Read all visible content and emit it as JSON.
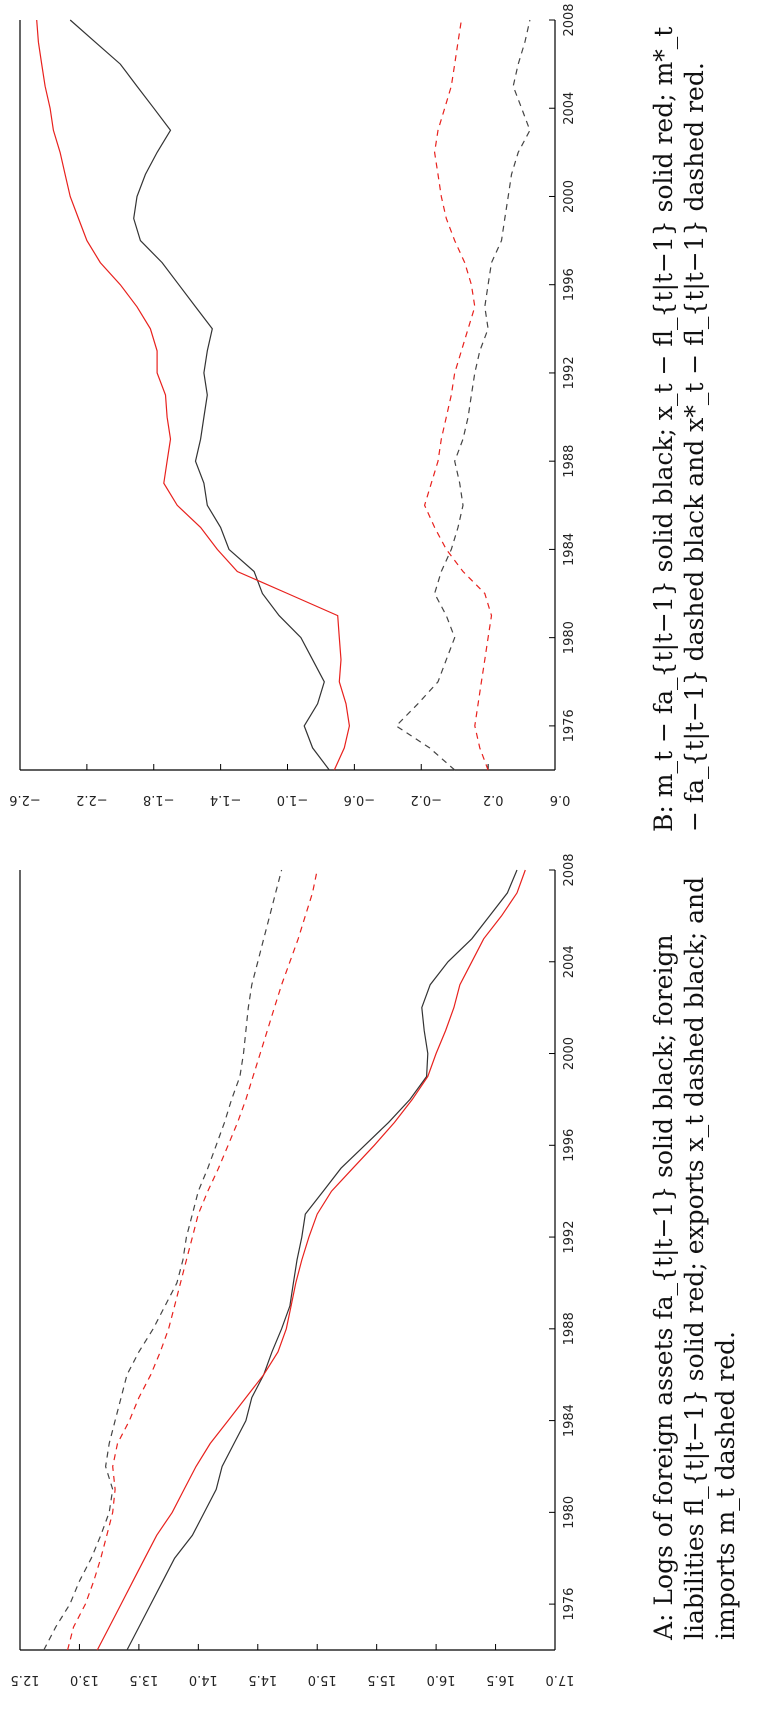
{
  "chart_data": [
    {
      "panel": "A",
      "type": "line",
      "caption": "A: Logs of foreign assets fa_{t|t−1} solid black; foreign liabilities fl_{t|t−1} solid red; exports x_t dashed black; and imports m_t dashed red.",
      "ylim": [
        12.5,
        17.0
      ],
      "yticks": [
        "12.5",
        "13.0",
        "13.5",
        "14.0",
        "14.5",
        "15.0",
        "15.5",
        "16.0",
        "16.5",
        "17.0"
      ],
      "xlim": [
        1974,
        2008
      ],
      "xticks": [
        "1976",
        "1980",
        "1984",
        "1988",
        "1992",
        "1996",
        "2000",
        "2004",
        "2008"
      ],
      "series": [
        {
          "style": "solid",
          "color": "#333333",
          "x": [
            1974,
            1975,
            1976,
            1977,
            1978,
            1979,
            1980,
            1981,
            1982,
            1983,
            1984,
            1985,
            1986,
            1987,
            1988,
            1989,
            1990,
            1991,
            1992,
            1993,
            1994,
            1995,
            1996,
            1997,
            1998,
            1999,
            2000,
            2001,
            2002,
            2003,
            2004,
            2005,
            2006,
            2007,
            2008
          ],
          "y": [
            13.4,
            13.5,
            13.6,
            13.7,
            13.8,
            13.95,
            14.05,
            14.15,
            14.2,
            14.3,
            14.4,
            14.45,
            14.55,
            14.62,
            14.7,
            14.77,
            14.8,
            14.83,
            14.87,
            14.9,
            15.05,
            15.2,
            15.4,
            15.6,
            15.78,
            15.92,
            15.93,
            15.9,
            15.88,
            15.95,
            16.1,
            16.3,
            16.45,
            16.6,
            16.68
          ]
        },
        {
          "style": "solid",
          "color": "#e8211d",
          "x": [
            1974,
            1975,
            1976,
            1977,
            1978,
            1979,
            1980,
            1981,
            1982,
            1983,
            1984,
            1985,
            1986,
            1987,
            1988,
            1989,
            1990,
            1991,
            1992,
            1993,
            1994,
            1995,
            1996,
            1997,
            1998,
            1999,
            2000,
            2001,
            2002,
            2003,
            2004,
            2005,
            2006,
            2007,
            2008
          ],
          "y": [
            13.15,
            13.25,
            13.35,
            13.45,
            13.55,
            13.65,
            13.78,
            13.88,
            13.98,
            14.1,
            14.25,
            14.4,
            14.55,
            14.67,
            14.74,
            14.78,
            14.82,
            14.87,
            14.93,
            15.0,
            15.12,
            15.3,
            15.48,
            15.65,
            15.8,
            15.93,
            16.0,
            16.08,
            16.15,
            16.2,
            16.3,
            16.4,
            16.55,
            16.68,
            16.75
          ]
        },
        {
          "style": "dashed",
          "color": "#444444",
          "x": [
            1974,
            1975,
            1976,
            1977,
            1978,
            1979,
            1980,
            1981,
            1982,
            1983,
            1984,
            1985,
            1986,
            1987,
            1988,
            1989,
            1990,
            1991,
            1992,
            1993,
            1994,
            1995,
            1996,
            1997,
            1998,
            1999,
            2000,
            2001,
            2002,
            2003,
            2004,
            2005,
            2006,
            2007,
            2008
          ],
          "y": [
            12.7,
            12.8,
            12.92,
            13.0,
            13.1,
            13.18,
            13.25,
            13.28,
            13.22,
            13.25,
            13.3,
            13.35,
            13.4,
            13.5,
            13.62,
            13.72,
            13.82,
            13.87,
            13.9,
            13.95,
            14.0,
            14.08,
            14.15,
            14.22,
            14.28,
            14.35,
            14.38,
            14.4,
            14.42,
            14.45,
            14.5,
            14.55,
            14.6,
            14.65,
            14.7
          ]
        },
        {
          "style": "dashed",
          "color": "#e8211d",
          "x": [
            1974,
            1975,
            1976,
            1977,
            1978,
            1979,
            1980,
            1981,
            1982,
            1983,
            1984,
            1985,
            1986,
            1987,
            1988,
            1989,
            1990,
            1991,
            1992,
            1993,
            1994,
            1995,
            1996,
            1997,
            1998,
            1999,
            2000,
            2001,
            2002,
            2003,
            2004,
            2005,
            2006,
            2007,
            2008
          ],
          "y": [
            12.9,
            12.95,
            13.05,
            13.12,
            13.18,
            13.23,
            13.28,
            13.3,
            13.28,
            13.32,
            13.42,
            13.5,
            13.6,
            13.68,
            13.75,
            13.8,
            13.85,
            13.9,
            13.95,
            14.0,
            14.08,
            14.17,
            14.25,
            14.33,
            14.4,
            14.46,
            14.52,
            14.58,
            14.64,
            14.7,
            14.77,
            14.84,
            14.9,
            14.96,
            15.0
          ]
        }
      ]
    },
    {
      "panel": "B",
      "type": "line",
      "caption": "B: m_t − fa_{t|t−1} solid black; x_t − fl_{t|t−1} solid red; m*_t − fa_{t|t−1} dashed black and x*_t − fl_{t|t−1} dashed red.",
      "ylim": [
        -2.6,
        0.6
      ],
      "yticks": [
        "−2.6",
        "−2.2",
        "−1.8",
        "−1.4",
        "−1.0",
        "−0.6",
        "−0.2",
        "0.2",
        "0.6"
      ],
      "xlim": [
        1974,
        2008
      ],
      "xticks": [
        "1976",
        "1980",
        "1984",
        "1988",
        "1992",
        "1996",
        "2000",
        "2004",
        "2008"
      ],
      "series": [
        {
          "style": "solid",
          "color": "#333333",
          "x": [
            1974,
            1975,
            1976,
            1977,
            1978,
            1979,
            1980,
            1981,
            1982,
            1983,
            1984,
            1985,
            1986,
            1987,
            1988,
            1989,
            1990,
            1991,
            1992,
            1993,
            1994,
            1995,
            1996,
            1997,
            1998,
            1999,
            2000,
            2001,
            2002,
            2003,
            2004,
            2005,
            2006,
            2007,
            2008
          ],
          "y": [
            -0.75,
            -0.85,
            -0.9,
            -0.82,
            -0.78,
            -0.85,
            -0.92,
            -1.05,
            -1.15,
            -1.2,
            -1.35,
            -1.4,
            -1.48,
            -1.5,
            -1.55,
            -1.52,
            -1.5,
            -1.48,
            -1.5,
            -1.48,
            -1.45,
            -1.55,
            -1.65,
            -1.75,
            -1.88,
            -1.92,
            -1.9,
            -1.85,
            -1.78,
            -1.7,
            -1.8,
            -1.9,
            -2.0,
            -2.15,
            -2.3
          ]
        },
        {
          "style": "solid",
          "color": "#e8211d",
          "x": [
            1974,
            1975,
            1976,
            1977,
            1978,
            1979,
            1980,
            1981,
            1982,
            1983,
            1984,
            1985,
            1986,
            1987,
            1988,
            1989,
            1990,
            1991,
            1992,
            1993,
            1994,
            1995,
            1996,
            1997,
            1998,
            1999,
            2000,
            2001,
            2002,
            2003,
            2004,
            2005,
            2006,
            2007,
            2008
          ],
          "y": [
            -0.72,
            -0.66,
            -0.63,
            -0.65,
            -0.69,
            -0.68,
            -0.69,
            -0.7,
            -1.0,
            -1.3,
            -1.42,
            -1.52,
            -1.66,
            -1.74,
            -1.72,
            -1.7,
            -1.72,
            -1.73,
            -1.78,
            -1.78,
            -1.82,
            -1.9,
            -2.0,
            -2.12,
            -2.2,
            -2.25,
            -2.3,
            -2.33,
            -2.36,
            -2.4,
            -2.42,
            -2.45,
            -2.47,
            -2.49,
            -2.5
          ]
        },
        {
          "style": "dashed",
          "color": "#444444",
          "x": [
            1974,
            1975,
            1976,
            1977,
            1978,
            1979,
            1980,
            1981,
            1982,
            1983,
            1984,
            1985,
            1986,
            1987,
            1988,
            1989,
            1990,
            1991,
            1992,
            1993,
            1994,
            1995,
            1996,
            1997,
            1998,
            1999,
            2000,
            2001,
            2002,
            2003,
            2004,
            2005,
            2006,
            2007,
            2008
          ],
          "y": [
            0.0,
            -0.15,
            -0.35,
            -0.22,
            -0.1,
            -0.05,
            0.0,
            -0.05,
            -0.12,
            -0.08,
            -0.02,
            0.02,
            0.05,
            0.03,
            0.0,
            0.05,
            0.08,
            0.1,
            0.12,
            0.15,
            0.2,
            0.18,
            0.2,
            0.22,
            0.28,
            0.3,
            0.32,
            0.34,
            0.38,
            0.45,
            0.4,
            0.35,
            0.38,
            0.42,
            0.45
          ]
        },
        {
          "style": "dashed",
          "color": "#e8211d",
          "x": [
            1974,
            1975,
            1976,
            1977,
            1978,
            1979,
            1980,
            1981,
            1982,
            1983,
            1984,
            1985,
            1986,
            1987,
            1988,
            1989,
            1990,
            1991,
            1992,
            1993,
            1994,
            1995,
            1996,
            1997,
            1998,
            1999,
            2000,
            2001,
            2002,
            2003,
            2004,
            2005,
            2006,
            2007,
            2008
          ],
          "y": [
            0.2,
            0.15,
            0.12,
            0.14,
            0.16,
            0.18,
            0.2,
            0.22,
            0.18,
            0.05,
            -0.05,
            -0.12,
            -0.18,
            -0.14,
            -0.1,
            -0.08,
            -0.05,
            -0.02,
            0.0,
            0.04,
            0.08,
            0.12,
            0.1,
            0.06,
            0.0,
            -0.05,
            -0.08,
            -0.1,
            -0.12,
            -0.1,
            -0.06,
            -0.02,
            0.0,
            0.02,
            0.04
          ]
        }
      ]
    }
  ]
}
